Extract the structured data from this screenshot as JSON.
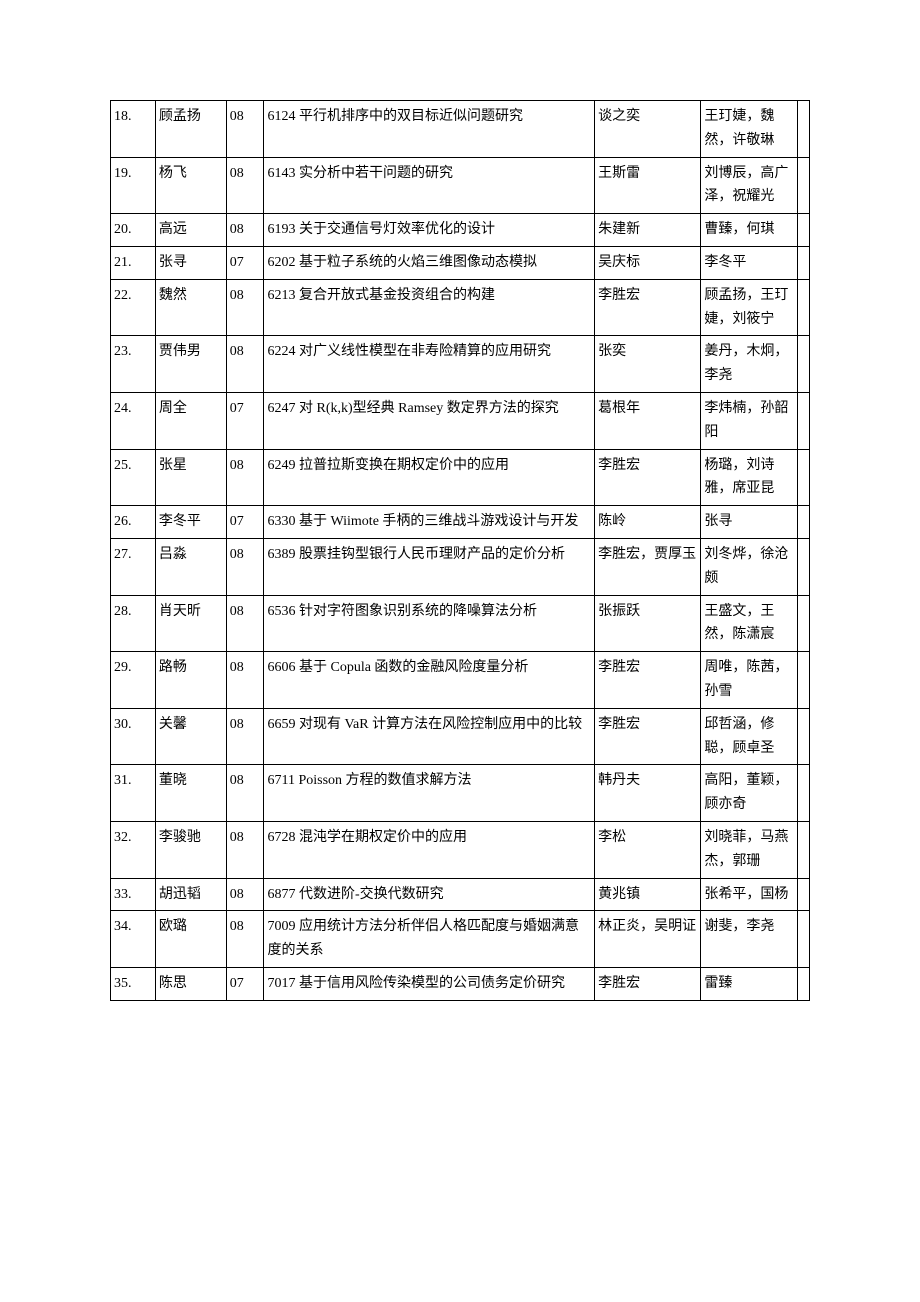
{
  "rows": [
    {
      "idx": "18.",
      "name": "顾孟扬",
      "year": "08",
      "title": "6124 平行机排序中的双目标近似问题研究",
      "advisor": "谈之奕",
      "team": "王玎婕，魏然，许敬琳"
    },
    {
      "idx": "19.",
      "name": "杨飞",
      "year": "08",
      "title": "6143 实分析中若干问题的研究",
      "advisor": "王斯雷",
      "team": "刘博辰，高广泽，祝耀光"
    },
    {
      "idx": "20.",
      "name": "高远",
      "year": "08",
      "title": "6193 关于交通信号灯效率优化的设计",
      "advisor": "朱建新",
      "team": "曹臻，何琪"
    },
    {
      "idx": "21.",
      "name": "张寻",
      "year": "07",
      "title": "6202 基于粒子系统的火焰三维图像动态模拟",
      "advisor": "吴庆标",
      "team": "李冬平"
    },
    {
      "idx": "22.",
      "name": "魏然",
      "year": "08",
      "title": "6213 复合开放式基金投资组合的构建",
      "advisor": "李胜宏",
      "team": "顾孟扬，王玎婕，刘筱宁"
    },
    {
      "idx": "23.",
      "name": "贾伟男",
      "year": "08",
      "title": "6224 对广义线性模型在非寿险精算的应用研究",
      "advisor": "张奕",
      "team": "姜丹，木炯，李尧"
    },
    {
      "idx": "24.",
      "name": "周全",
      "year": "07",
      "title": "6247 对 R(k,k)型经典 Ramsey 数定界方法的探究",
      "advisor": "葛根年",
      "team": "李炜楠，孙韶阳"
    },
    {
      "idx": "25.",
      "name": "张星",
      "year": "08",
      "title": "6249 拉普拉斯变换在期权定价中的应用",
      "advisor": "李胜宏",
      "team": "杨璐，刘诗雅，席亚昆"
    },
    {
      "idx": "26.",
      "name": "李冬平",
      "year": "07",
      "title": "6330 基于 Wiimote 手柄的三维战斗游戏设计与开发",
      "advisor": "陈岭",
      "team": "张寻"
    },
    {
      "idx": "27.",
      "name": "吕淼",
      "year": "08",
      "title": "6389 股票挂钩型银行人民币理财产品的定价分析",
      "advisor": "李胜宏，贾厚玉",
      "team": "刘冬烨，徐沧颇"
    },
    {
      "idx": "28.",
      "name": "肖天昕",
      "year": "08",
      "title": "6536 针对字符图象识别系统的降噪算法分析",
      "advisor": "张振跃",
      "team": "王盛文，王然，陈潇宸"
    },
    {
      "idx": "29.",
      "name": "路畅",
      "year": "08",
      "title": "6606 基于 Copula 函数的金融风险度量分析",
      "advisor": "李胜宏",
      "team": "周唯，陈茜，孙雪"
    },
    {
      "idx": "30.",
      "name": "关馨",
      "year": "08",
      "title": "6659 对现有 VaR 计算方法在风险控制应用中的比较",
      "advisor": "李胜宏",
      "team": "邱哲涵，修聪，顾卓圣"
    },
    {
      "idx": "31.",
      "name": "董晓",
      "year": "08",
      "title": "6711 Poisson 方程的数值求解方法",
      "advisor": "韩丹夫",
      "team": "高阳，董颖，顾亦奇"
    },
    {
      "idx": "32.",
      "name": "李骏驰",
      "year": "08",
      "title": "6728 混沌学在期权定价中的应用",
      "advisor": "李松",
      "team": "刘晓菲，马燕杰，郭珊"
    },
    {
      "idx": "33.",
      "name": "胡迅韬",
      "year": "08",
      "title": "6877 代数进阶-交换代数研究",
      "advisor": "黄兆镇",
      "team": "张希平，国杨"
    },
    {
      "idx": "34.",
      "name": "欧璐",
      "year": "08",
      "title": "7009 应用统计方法分析伴侣人格匹配度与婚姻满意度的关系",
      "advisor": "林正炎，吴明证",
      "team": "谢斐，李尧"
    },
    {
      "idx": "35.",
      "name": "陈思",
      "year": "07",
      "title": "7017 基于信用风险传染模型的公司债务定价研究",
      "advisor": "李胜宏",
      "team": "雷臻"
    }
  ]
}
